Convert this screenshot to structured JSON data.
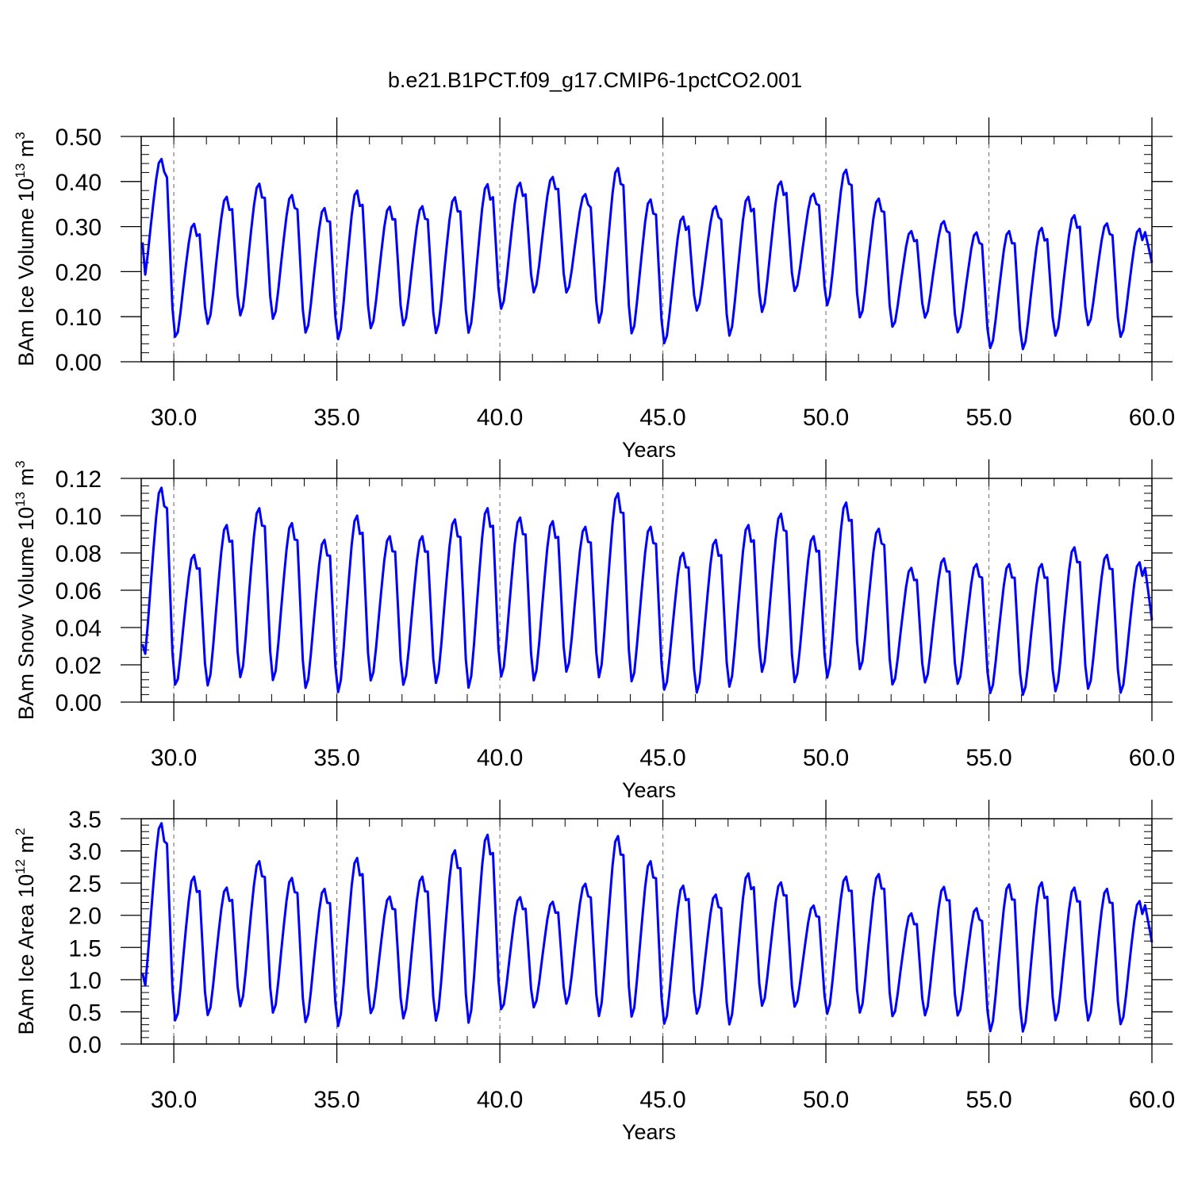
{
  "figure": {
    "title": "b.e21.B1PCT.f09_g17.CMIP6-1pctCO2.001",
    "colors": {
      "series": "#0000ff",
      "axis": "#000000",
      "gridline": "#7f7f7f"
    }
  },
  "chart_data": [
    {
      "type": "line",
      "title": "b.e21.B1PCT.f09_g17.CMIP6-1pctCO2.001",
      "xlabel": "Years",
      "ylabel": {
        "prefix": "BAm Ice Volume 10",
        "exp": "13",
        "unit": " m",
        "unit_exp": "3"
      },
      "xlim": [
        29.0,
        60.0
      ],
      "ylim": [
        0.0,
        0.5
      ],
      "xticks": [
        "30.0",
        "35.0",
        "40.0",
        "45.0",
        "50.0",
        "55.0",
        "60.0"
      ],
      "yticks": [
        "0.00",
        "0.10",
        "0.20",
        "0.30",
        "0.40",
        "0.50"
      ],
      "ytick_values": [
        0.0,
        0.1,
        0.2,
        0.3,
        0.4,
        0.5
      ],
      "vertical_reference_lines": [
        30,
        35,
        40,
        45,
        50,
        55
      ],
      "grid": false,
      "series": [
        {
          "color": "#0000ff",
          "peaks": [
            0.45,
            0.306,
            0.366,
            0.395,
            0.37,
            0.341,
            0.38,
            0.344,
            0.345,
            0.365,
            0.394,
            0.397,
            0.41,
            0.372,
            0.43,
            0.36,
            0.322,
            0.345,
            0.366,
            0.4,
            0.373,
            0.426,
            0.362,
            0.29,
            0.312,
            0.287,
            0.29,
            0.297,
            0.325,
            0.307,
            0.295
          ],
          "troughs": [
            0.165,
            0.039,
            0.075,
            0.092,
            0.083,
            0.052,
            0.038,
            0.062,
            0.07,
            0.052,
            0.052,
            0.106,
            0.144,
            0.143,
            0.075,
            0.048,
            0.028,
            0.105,
            0.046,
            0.1,
            0.147,
            0.115,
            0.085,
            0.066,
            0.09,
            0.055,
            0.02,
            0.017,
            0.048,
            0.071,
            0.045
          ],
          "start": 0.265,
          "end": 0.22
        }
      ]
    },
    {
      "type": "line",
      "xlabel": "Years",
      "ylabel": {
        "prefix": "BAm Snow Volume 10",
        "exp": "13",
        "unit": " m",
        "unit_exp": "3"
      },
      "xlim": [
        29.0,
        60.0
      ],
      "ylim": [
        0.0,
        0.12
      ],
      "xticks": [
        "30.0",
        "35.0",
        "40.0",
        "45.0",
        "50.0",
        "55.0",
        "60.0"
      ],
      "yticks": [
        "0.00",
        "0.02",
        "0.04",
        "0.06",
        "0.08",
        "0.10",
        "0.12"
      ],
      "ytick_values": [
        0.0,
        0.02,
        0.04,
        0.06,
        0.08,
        0.1,
        0.12
      ],
      "vertical_reference_lines": [
        30,
        35,
        40,
        45,
        50,
        55
      ],
      "grid": false,
      "series": [
        {
          "color": "#0000ff",
          "peaks": [
            0.115,
            0.079,
            0.095,
            0.104,
            0.096,
            0.087,
            0.1,
            0.089,
            0.089,
            0.098,
            0.104,
            0.099,
            0.097,
            0.094,
            0.112,
            0.094,
            0.08,
            0.087,
            0.095,
            0.101,
            0.089,
            0.107,
            0.093,
            0.072,
            0.077,
            0.074,
            0.074,
            0.074,
            0.083,
            0.079,
            0.075
          ],
          "troughs": [
            0.016,
            0.005,
            0.006,
            0.01,
            0.008,
            0.004,
            0.002,
            0.008,
            0.006,
            0.007,
            0.004,
            0.01,
            0.008,
            0.013,
            0.01,
            0.007,
            0.003,
            0.002,
            0.005,
            0.013,
            0.007,
            0.01,
            0.014,
            0.006,
            0.008,
            0.007,
            0.002,
            0.001,
            0.003,
            0.004,
            0.002
          ],
          "start": 0.031,
          "end": 0.044
        }
      ]
    },
    {
      "type": "line",
      "xlabel": "Years",
      "ylabel": {
        "prefix": "BAm Ice Area 10",
        "exp": "12",
        "unit": " m",
        "unit_exp": "2"
      },
      "xlim": [
        29.0,
        60.0
      ],
      "ylim": [
        0.0,
        3.5
      ],
      "xticks": [
        "30.0",
        "35.0",
        "40.0",
        "45.0",
        "50.0",
        "55.0",
        "60.0"
      ],
      "yticks": [
        "0.0",
        "0.5",
        "1.0",
        "1.5",
        "2.0",
        "2.5",
        "3.0",
        "3.5"
      ],
      "ytick_values": [
        0.0,
        0.5,
        1.0,
        1.5,
        2.0,
        2.5,
        3.0,
        3.5
      ],
      "vertical_reference_lines": [
        30,
        35,
        40,
        45,
        50,
        55
      ],
      "grid": false,
      "series": [
        {
          "color": "#0000ff",
          "peaks": [
            3.43,
            2.6,
            2.43,
            2.84,
            2.58,
            2.41,
            2.89,
            2.29,
            2.6,
            3.01,
            3.25,
            2.28,
            2.21,
            2.49,
            3.23,
            2.84,
            2.46,
            2.32,
            2.65,
            2.51,
            2.15,
            2.6,
            2.64,
            2.03,
            2.44,
            2.11,
            2.48,
            2.51,
            2.43,
            2.41,
            2.22
          ],
          "troughs": [
            0.63,
            0.24,
            0.36,
            0.51,
            0.39,
            0.25,
            0.19,
            0.38,
            0.32,
            0.27,
            0.22,
            0.43,
            0.5,
            0.56,
            0.35,
            0.31,
            0.21,
            0.39,
            0.22,
            0.51,
            0.5,
            0.4,
            0.4,
            0.34,
            0.38,
            0.36,
            0.12,
            0.1,
            0.28,
            0.28,
            0.22
          ],
          "start": 1.1,
          "end": 1.58
        }
      ]
    }
  ]
}
